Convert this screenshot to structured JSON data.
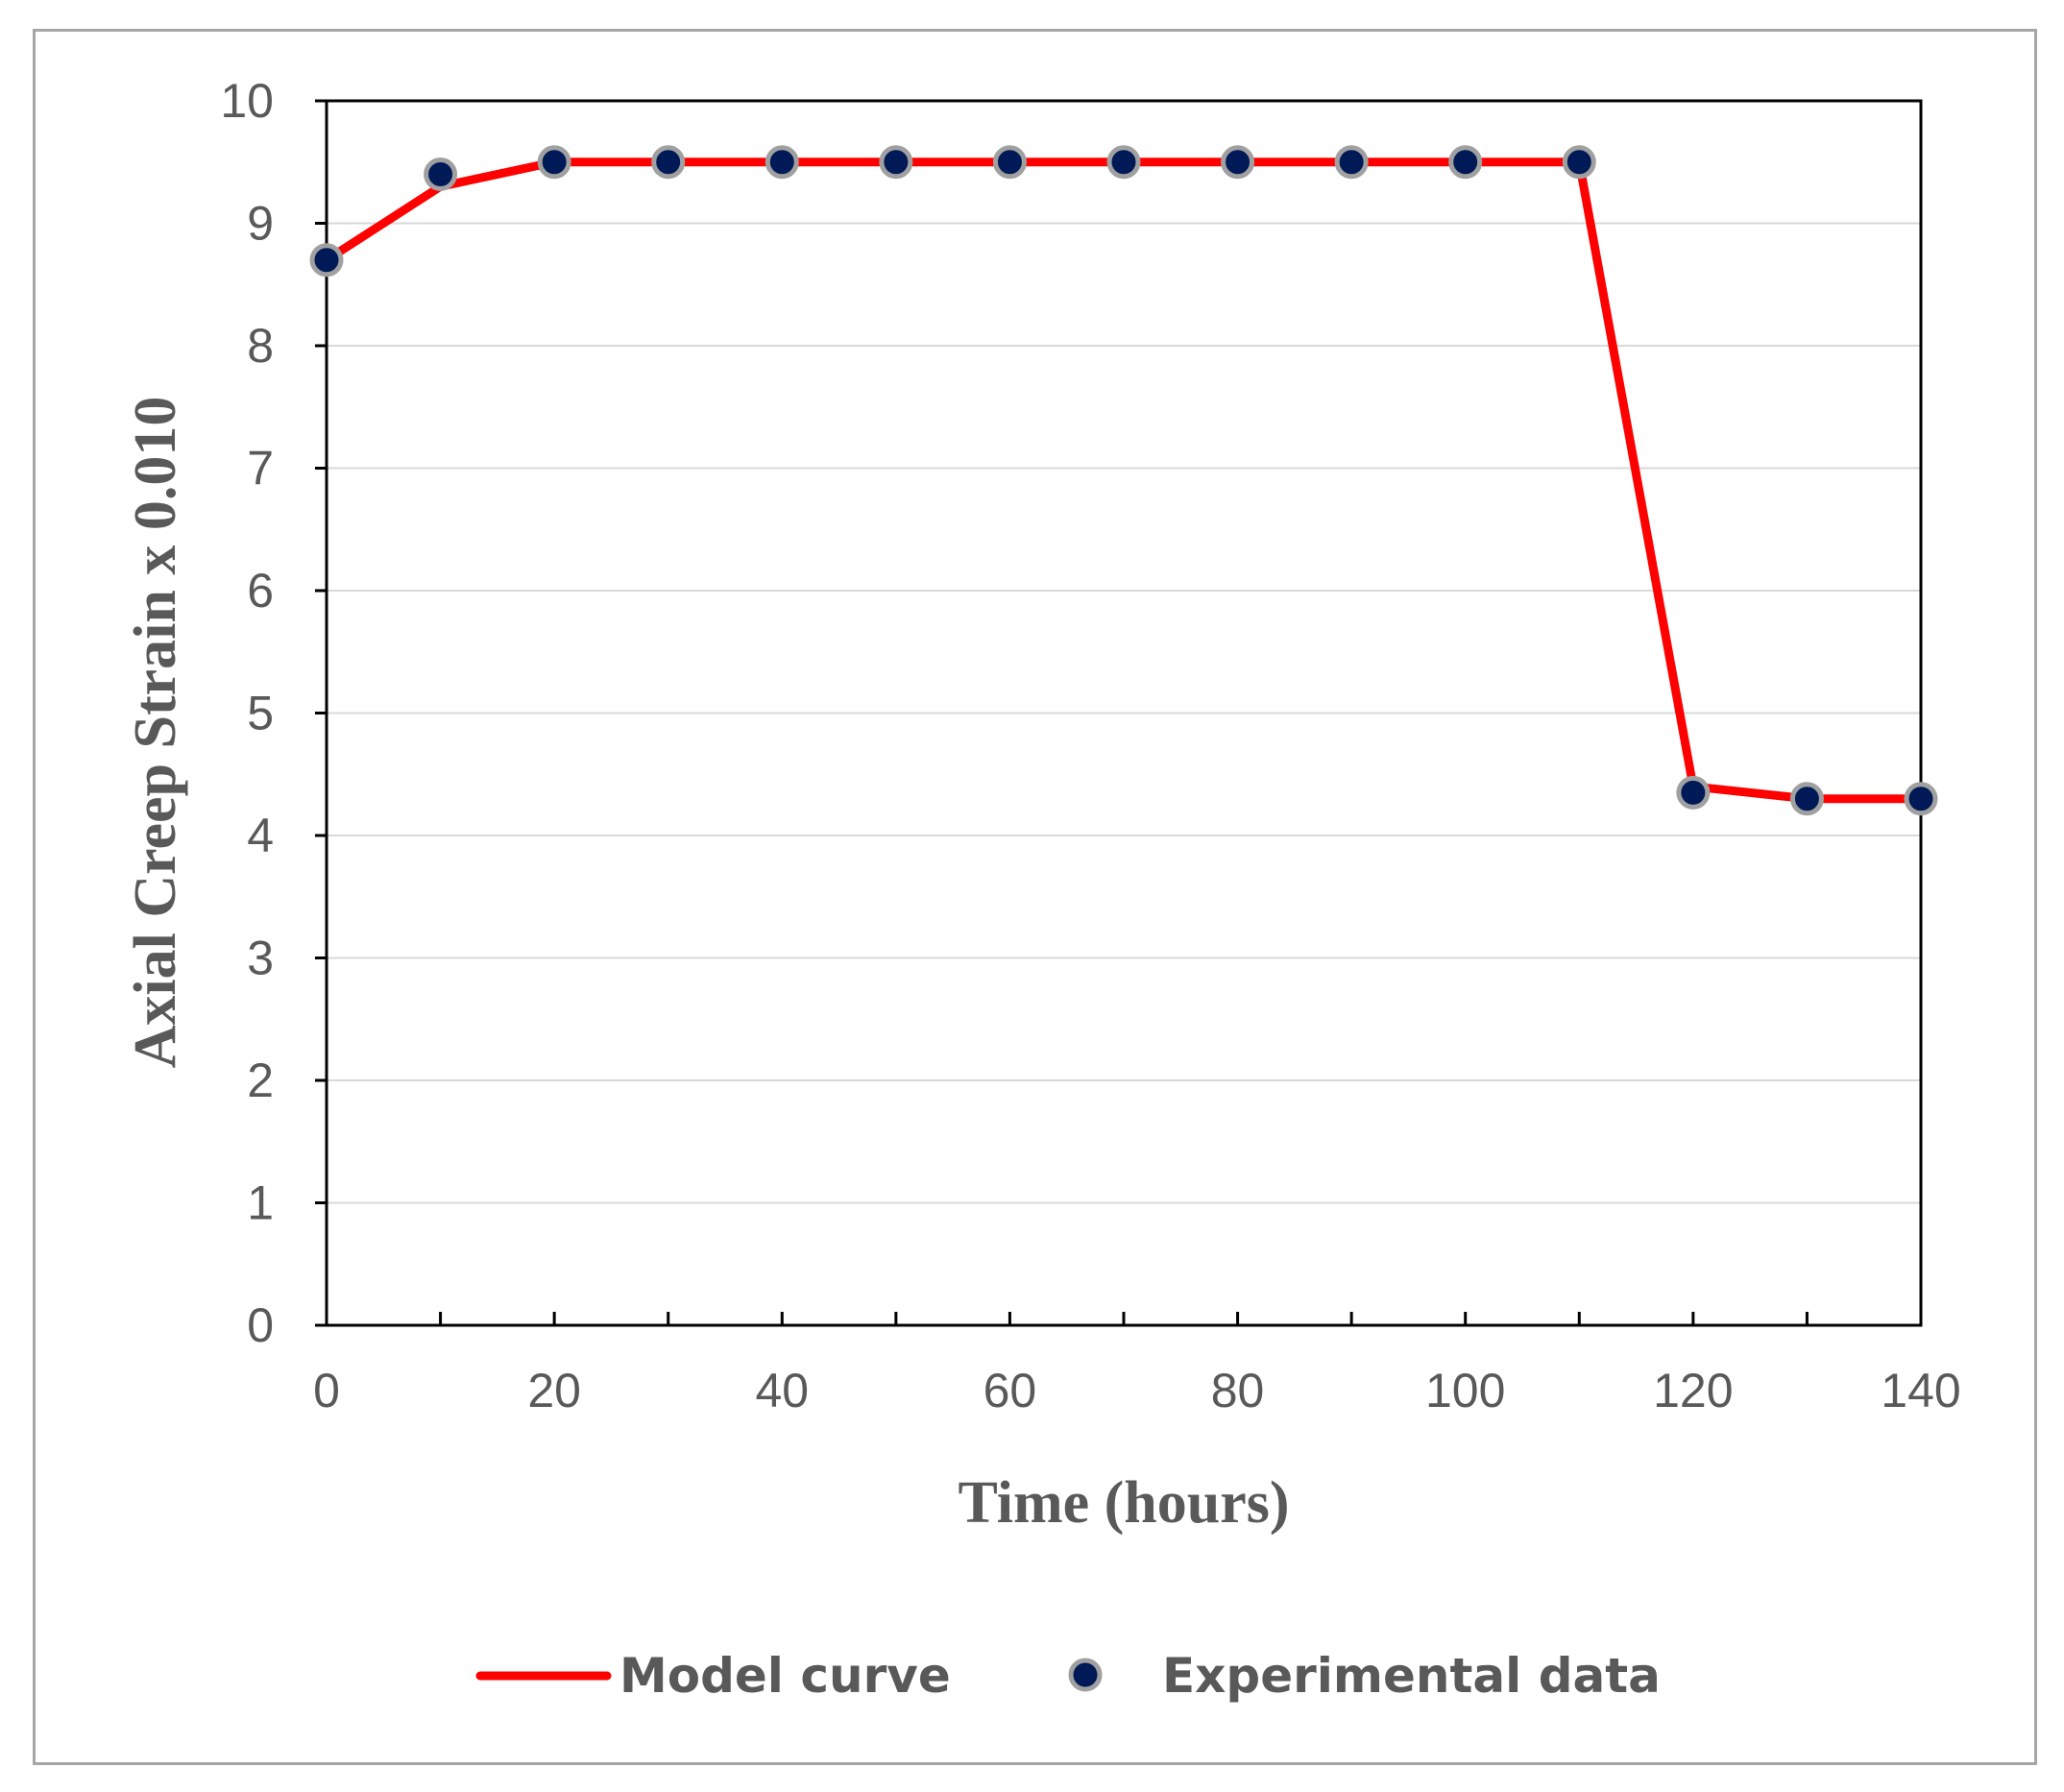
{
  "chart_data": {
    "type": "line",
    "title": "",
    "xlabel": "Time (hours)",
    "ylabel": "Axial Creep Strain x 0.010",
    "xlim": [
      0,
      140
    ],
    "ylim": [
      0,
      10
    ],
    "x_ticks": [
      0,
      20,
      40,
      60,
      80,
      100,
      120,
      140
    ],
    "x_minor_ticks": [
      10,
      30,
      50,
      70,
      90,
      110,
      130
    ],
    "y_ticks": [
      0,
      1,
      2,
      3,
      4,
      5,
      6,
      7,
      8,
      9,
      10
    ],
    "grid": "horizontal",
    "legend_position": "bottom",
    "series": [
      {
        "name": "Model curve",
        "kind": "line",
        "color": "#ff0000",
        "x": [
          0,
          10,
          20,
          30,
          40,
          50,
          60,
          70,
          80,
          90,
          100,
          110,
          120,
          130,
          140
        ],
        "y": [
          8.7,
          9.3,
          9.5,
          9.5,
          9.5,
          9.5,
          9.5,
          9.5,
          9.5,
          9.5,
          9.5,
          9.5,
          4.4,
          4.3,
          4.3
        ]
      },
      {
        "name": "Experimental data",
        "kind": "scatter",
        "color": "#001a57",
        "x": [
          0,
          10,
          20,
          30,
          40,
          50,
          60,
          70,
          80,
          90,
          100,
          110,
          120,
          130,
          140
        ],
        "y": [
          8.7,
          9.4,
          9.5,
          9.5,
          9.5,
          9.5,
          9.5,
          9.5,
          9.5,
          9.5,
          9.5,
          9.5,
          4.35,
          4.3,
          4.3
        ]
      }
    ]
  }
}
